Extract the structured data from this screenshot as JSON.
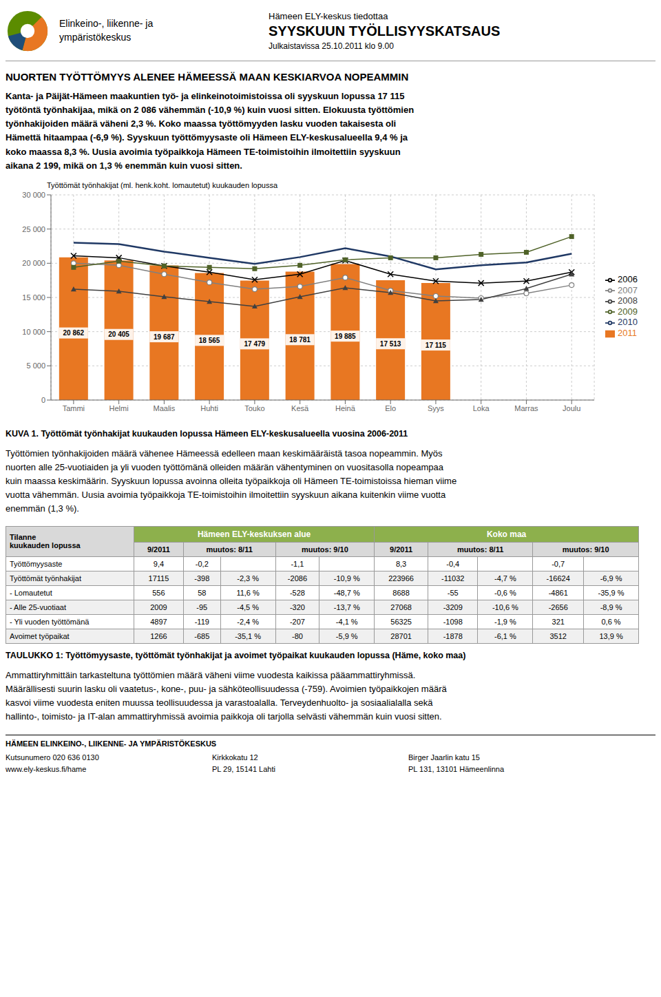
{
  "chart_data": [
    {
      "type": "bar",
      "title": "Työttömät työnhakijat (ml. henk.koht. lomautetut) kuukauden lopussa",
      "categories": [
        "Tammi",
        "Helmi",
        "Maalis",
        "Huhti",
        "Touko",
        "Kesä",
        "Heinä",
        "Elo",
        "Syys",
        "Loka",
        "Marras",
        "Joulu"
      ],
      "series": [
        {
          "name": "2011",
          "type": "bar",
          "color": "#E87722",
          "data_labels": true,
          "values": [
            20862,
            20405,
            19687,
            18565,
            17479,
            18781,
            19885,
            17513,
            17115,
            null,
            null,
            null
          ],
          "value_labels": [
            "20 862",
            "20 405",
            "19 687",
            "18 565",
            "17 479",
            "18 781",
            "19 885",
            "17 513",
            "17 115",
            null,
            null,
            null
          ]
        },
        {
          "name": "2006",
          "type": "line",
          "color": "#000000",
          "marker": "x",
          "values": [
            21100,
            20800,
            19600,
            18700,
            17600,
            18400,
            20400,
            18400,
            17400,
            17100,
            17400,
            18700
          ]
        },
        {
          "name": "2007",
          "type": "line",
          "color": "#808080",
          "marker": "circle",
          "values": [
            20000,
            19700,
            18400,
            17200,
            16200,
            16600,
            17900,
            16000,
            15200,
            14900,
            15600,
            16800
          ]
        },
        {
          "name": "2008",
          "type": "line",
          "color": "#404040",
          "marker": "triangle",
          "values": [
            16200,
            15900,
            15100,
            14400,
            13700,
            15100,
            16400,
            15700,
            14500,
            14700,
            16300,
            18400
          ]
        },
        {
          "name": "2009",
          "type": "line",
          "color": "#4F6228",
          "marker": "square",
          "values": [
            19400,
            20300,
            19600,
            19400,
            19200,
            19700,
            20500,
            20800,
            20800,
            21300,
            21600,
            23900
          ]
        },
        {
          "name": "2010",
          "type": "line",
          "color": "#1F3864",
          "marker": "none",
          "values": [
            23000,
            22800,
            21700,
            20800,
            19900,
            20900,
            22200,
            21000,
            19100,
            19700,
            20100,
            21400
          ]
        }
      ],
      "ylim": [
        0,
        30000
      ],
      "yticks": [
        0,
        {
          "value": 5000,
          "label": "5 000"
        },
        {
          "value": 10000,
          "label": "10 000"
        },
        {
          "value": 15000,
          "label": "15 000"
        },
        {
          "value": 20000,
          "label": "20 000"
        },
        {
          "value": 25000,
          "label": "25 000"
        },
        {
          "value": 30000,
          "label": "30 000"
        }
      ],
      "grid": true,
      "legend": "right",
      "annotations": [
        "Elinkeino-, liikenne- ja",
        "ympäristökeskus",
        "Hämeen ELY-keskus tiedottaa",
        "SYYSKUUN TYÖLLISYYSKATSAUS",
        "Julkaistavissa 25.10.2011 klo 9.00",
        "NUORTEN TYÖTTÖMYYS ALENEE HÄMEESSÄ MAAN KESKIARVOA NOPEAMMIN",
        "Kanta- ja Päijät-Hämeen maakuntien työ- ja elinkeinotoimistoissa oli syyskuun lopussa 17 115\ntyötöntä työnhakijaa, mikä on 2 086 vähemmän (-10,9 %) kuin vuosi sitten. Elokuusta työttömien\ntyönhakijoiden määrä väheni 2,3 %. Koko maassa työttömyyden lasku vuoden takaisesta oli\nHämettä hitaampaa (-6,9 %). Syyskuun työttömyysaste oli Hämeen ELY-keskusalueella 9,4 % ja\nkoko maassa 8,3 %. Uusia avoimia työpaikkoja Hämeen TE-toimistoihin ilmoitettiin syyskuun\naikana 2 199, mikä on 1,3 % enemmän kuin vuosi sitten.",
        "KUVA 1. Työttömät työnhakijat kuukauden lopussa Hämeen ELY-keskusalueella vuosina 2006-2011",
        "Työttömien työnhakijoiden määrä vähenee Hämeessä edelleen maan keskimääräistä tasoa nopeammin. Myös\nnuorten alle 25-vuotiaiden ja yli vuoden työttömänä olleiden määrän vähentyminen on vuositasolla nopeampaa\nkuin maassa keskimäärin. Syyskuun lopussa avoinna olleita työpaikkoja oli Hämeen TE-toimistoissa hieman viime\nvuotta vähemmän. Uusia avoimia työpaikkoja TE-toimistoihin ilmoitettiin syyskuun aikana kuitenkin viime vuotta\nenemmän (1,3 %)."
      ]
    },
    {
      "type": "table",
      "title": "TAULUKKO 1: Työttömyysaste, työttömät työnhakijat ja avoimet työpaikat kuukauden lopussa (Häme, koko maa)",
      "row_header": "Tilanne\nkuukauden lopussa",
      "column_groups": [
        "Hämeen ELY-keskuksen alue",
        "Koko maa"
      ],
      "columns": [
        "9/2011",
        "muutos: 8/11",
        "muutos: 9/10"
      ],
      "categories": [
        "Työttömyysaste",
        "Työttömät työnhakijat",
        "- Lomautetut",
        "- Alle 25-vuotiaat",
        "- Yli vuoden työttömänä",
        "Avoimet työpaikat"
      ],
      "cells": [
        [
          "9,4",
          "-0,2",
          null,
          "-1,1",
          null,
          "8,3",
          "-0,4",
          null,
          "-0,7",
          null
        ],
        [
          "17115",
          "-398",
          "-2,3 %",
          "-2086",
          "-10,9 %",
          "223966",
          "-11032",
          "-4,7 %",
          "-16624",
          "-6,9 %"
        ],
        [
          "556",
          "58",
          "11,6 %",
          "-528",
          "-48,7 %",
          "8688",
          "-55",
          "-0,6 %",
          "-4861",
          "-35,9 %"
        ],
        [
          "2009",
          "-95",
          "-4,5 %",
          "-320",
          "-13,7 %",
          "27068",
          "-3209",
          "-10,6 %",
          "-2656",
          "-8,9 %"
        ],
        [
          "4897",
          "-119",
          "-2,4 %",
          "-207",
          "-4,1 %",
          "56325",
          "-1098",
          "-1,9 %",
          "321",
          "0,6 %"
        ],
        [
          "1266",
          "-685",
          "-35,1 %",
          "-80",
          "-5,9 %",
          "28701",
          "-1878",
          "-6,1 %",
          "3512",
          "13,9 %"
        ]
      ],
      "annotations": [
        "Ammattiryhmittäin tarkasteltuna työttömien määrä väheni viime vuodesta kaikissa pääammattiryhmissä.\nMäärällisesti suurin lasku oli vaatetus-, kone-, puu- ja sähköteollisuudessa (-759). Avoimien työpaikkojen määrä\nkasvoi viime vuodesta eniten muussa teollisuudessa ja varastoalalla. Terveydenhuolto- ja sosiaalialalla sekä\nhallinto-, toimisto- ja IT-alan ammattiryhmissä avoimia paikkoja oli tarjolla selvästi vähemmän kuin vuosi sitten.",
        "HÄMEEN ELINKEINO-, LIIKENNE- JA YMPÄRISTÖKESKUS",
        "Kutsunumero 020 636 0130\nwww.ely-keskus.fi/hame",
        "Kirkkokatu 12\nPL 29, 15141 Lahti",
        "Birger Jaarlin katu 15\nPL 131, 13101 Hämeenlinna"
      ]
    }
  ]
}
